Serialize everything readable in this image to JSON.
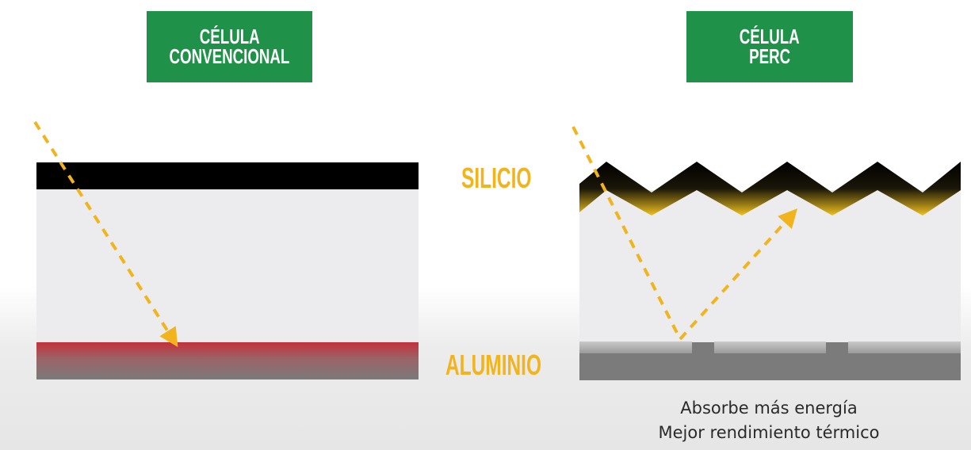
{
  "panels": {
    "conventional": {
      "title_line1": "CÉLULA",
      "title_line2": "CONVENCIONAL"
    },
    "perc": {
      "title_line1": "CÉLULA",
      "title_line2": "PERC"
    }
  },
  "layers": {
    "silicon_label": "SILICIO",
    "aluminum_label": "ALUMINIO"
  },
  "captions": {
    "line1": "Absorbe más energía",
    "line2": "Mejor rendimiento térmico"
  },
  "colors": {
    "title_green": "#1f9148",
    "label_yellow": "#f2b41c",
    "arrow_yellow": "#f2b41c",
    "silicon_black": "#000000",
    "aluminum_red": "#c0323a",
    "cell_body": "#ececef"
  }
}
